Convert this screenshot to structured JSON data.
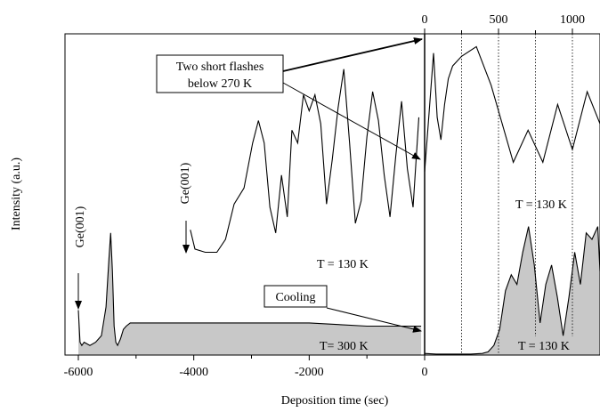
{
  "chart_data": {
    "type": "line",
    "xlabel": "Deposition time (sec)",
    "ylabel": "Intensity (a.u.)",
    "xlim": [
      -6270,
      1200
    ],
    "ylim": [
      0,
      1
    ],
    "x_ticks": [
      "-6000",
      "-4000",
      "-2000",
      "0"
    ],
    "top_axis": {
      "start": 0,
      "ticks": [
        "0",
        "500",
        "1000"
      ],
      "note": "expanded time scale for the T = 130 K growth"
    },
    "series": [
      {
        "x": [
          -6000,
          -5970,
          -5940,
          -5900,
          -5800,
          -5700,
          -5600,
          -5520,
          -5470,
          -5440,
          -5410,
          -5380,
          -5350,
          -5320,
          -5270,
          -5220,
          -5170,
          -5100,
          -5000,
          -4500,
          -4000,
          -3000,
          -2000,
          -1000,
          -500,
          -60
        ],
        "y": [
          0.14,
          0.04,
          0.03,
          0.04,
          0.03,
          0.04,
          0.06,
          0.15,
          0.3,
          0.38,
          0.26,
          0.09,
          0.04,
          0.03,
          0.05,
          0.08,
          0.09,
          0.1,
          0.1,
          0.1,
          0.1,
          0.1,
          0.1,
          0.09,
          0.09,
          0.09
        ],
        "fill": "#c8c8c8"
      },
      {
        "x": [
          -4060,
          -3980,
          -3800,
          -3600,
          -3450,
          -3300,
          -3130,
          -2980,
          -2880,
          -2780,
          -2680,
          -2580,
          -2480,
          -2380,
          -2300,
          -2200,
          -2100,
          -2000,
          -1900,
          -1800,
          -1700,
          -1600,
          -1500,
          -1400,
          -1300,
          -1200,
          -1100,
          -1000,
          -900,
          -800,
          -700,
          -600,
          -500,
          -400,
          -300,
          -200,
          -100
        ],
        "y": [
          0.39,
          0.33,
          0.32,
          0.32,
          0.36,
          0.47,
          0.52,
          0.66,
          0.73,
          0.66,
          0.46,
          0.38,
          0.56,
          0.43,
          0.7,
          0.66,
          0.81,
          0.76,
          0.81,
          0.72,
          0.47,
          0.61,
          0.77,
          0.89,
          0.66,
          0.41,
          0.48,
          0.68,
          0.82,
          0.73,
          0.56,
          0.43,
          0.62,
          0.79,
          0.58,
          0.46,
          0.74
        ]
      },
      {
        "x": [
          0,
          25,
          60,
          85,
          110,
          135,
          160,
          190,
          250,
          350,
          450,
          600,
          700,
          800,
          900,
          1000,
          1100,
          1200
        ],
        "y": [
          0.57,
          0.72,
          0.94,
          0.74,
          0.67,
          0.78,
          0.86,
          0.9,
          0.93,
          0.96,
          0.84,
          0.6,
          0.7,
          0.6,
          0.78,
          0.64,
          0.82,
          0.72
        ],
        "note": "plotted against the top (0–1000 s) axis"
      },
      {
        "x": [
          0,
          200,
          400,
          600,
          800,
          1000,
          1100,
          1200,
          1300,
          1400,
          1500,
          1600,
          1700,
          1800,
          1900,
          2000,
          2100,
          2200,
          2300,
          2400,
          2500,
          2600,
          2700,
          2800,
          2900,
          3000,
          3100,
          3200
        ],
        "y": [
          0.005,
          0.003,
          0.003,
          0.003,
          0.003,
          0.005,
          0.01,
          0.03,
          0.08,
          0.2,
          0.25,
          0.22,
          0.32,
          0.4,
          0.28,
          0.1,
          0.22,
          0.28,
          0.18,
          0.06,
          0.18,
          0.32,
          0.22,
          0.38,
          0.36,
          0.4,
          0.26,
          0.28
        ],
        "fill": "#c8c8c8"
      }
    ],
    "annotations": [
      {
        "text": "Ge(001)"
      },
      {
        "text": "Ge(001)"
      },
      {
        "text": "Two short flashes"
      },
      {
        "text": "below 270 K"
      },
      {
        "text": "Cooling"
      },
      {
        "text": "T = 130 K"
      },
      {
        "text": "T = 130 K"
      },
      {
        "text": "T= 300 K"
      },
      {
        "text": "T = 130 K"
      }
    ]
  }
}
